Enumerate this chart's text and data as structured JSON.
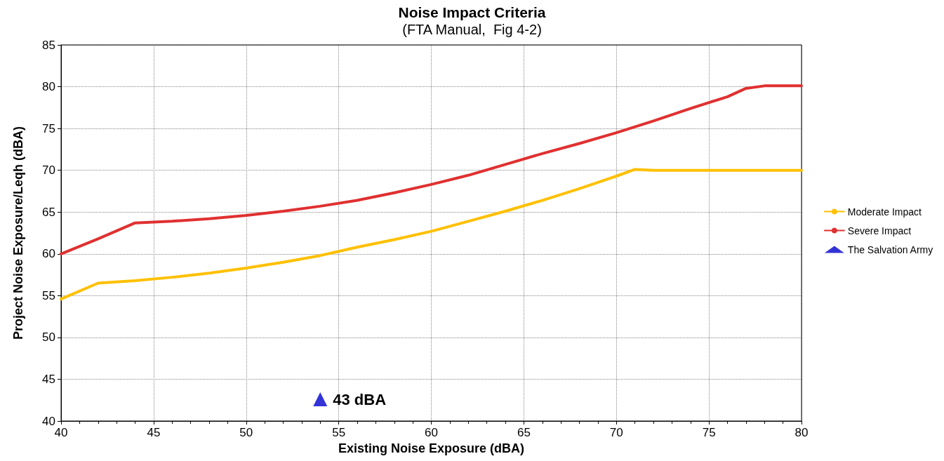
{
  "chart_data": {
    "type": "line",
    "title": "Noise Impact Criteria",
    "subtitle": "(FTA Manual,  Fig 4-2)",
    "xlabel": "Existing Noise Exposure (dBA)",
    "ylabel": "Project Noise Exposure/Leqh (dBA)",
    "xlim": [
      40,
      80
    ],
    "xticks": [
      40,
      45,
      50,
      55,
      60,
      65,
      70,
      75,
      80
    ],
    "ylim": [
      40,
      85
    ],
    "yticks": [
      40,
      45,
      50,
      55,
      60,
      65,
      70,
      75,
      80,
      85
    ],
    "grid": true,
    "legend": "right",
    "marker": "none",
    "line_style": "solid",
    "series": [
      {
        "name": "Moderate Impact",
        "color": "#ffc000",
        "x": [
          40,
          42,
          44,
          46,
          48,
          50,
          52,
          54,
          55,
          56,
          58,
          60,
          62,
          64,
          66,
          68,
          70,
          71,
          72,
          80
        ],
        "values": [
          54.6,
          56.5,
          56.8,
          57.2,
          57.7,
          58.3,
          59,
          59.8,
          60.3,
          60.8,
          61.7,
          62.7,
          63.9,
          65.1,
          66.4,
          67.8,
          69.3,
          70.1,
          70,
          70
        ]
      },
      {
        "name": "Severe Impact",
        "color": "#e03030",
        "x": [
          40,
          42,
          44,
          46,
          48,
          50,
          52,
          54,
          56,
          58,
          60,
          62,
          64,
          66,
          68,
          70,
          72,
          74,
          76,
          77,
          78,
          80
        ],
        "values": [
          60,
          61.8,
          63.7,
          63.9,
          64.2,
          64.6,
          65.1,
          65.7,
          66.4,
          67.3,
          68.3,
          69.4,
          70.7,
          72,
          73.2,
          74.5,
          75.9,
          77.4,
          78.8,
          79.8,
          80.1,
          80.1
        ]
      },
      {
        "name": "The Salvation Army",
        "type": "scatter",
        "marker": "triangle",
        "color": "#0000cc",
        "x": [
          54
        ],
        "values": [
          42.6
        ]
      }
    ],
    "annotations": [
      {
        "text": "43 dBA",
        "x": 54,
        "y": 42.6
      }
    ]
  }
}
